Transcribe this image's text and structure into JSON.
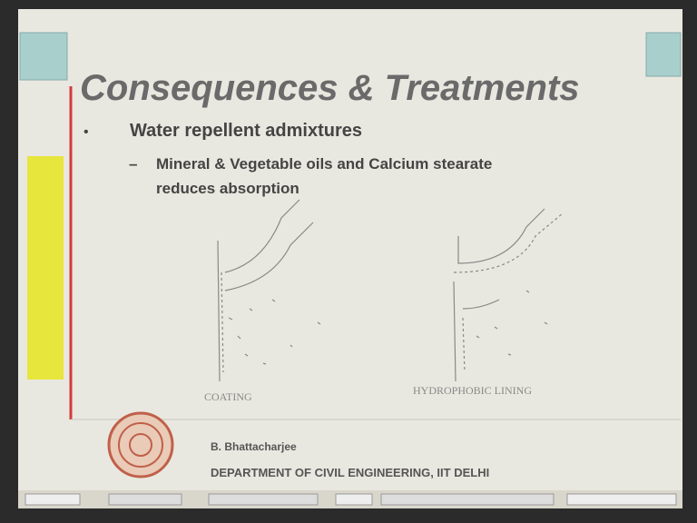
{
  "slide": {
    "title": "Consequences & Treatments",
    "bullets": [
      {
        "text": "Water repellent admixtures",
        "subitems": [
          {
            "lines": [
              "Mineral & Vegetable oils and Calcium stearate",
              "reduces absorption"
            ]
          }
        ]
      }
    ],
    "figures": [
      {
        "label": "COATING"
      },
      {
        "label": "HYDROPHOBIC LINING"
      }
    ],
    "footer": {
      "author": "B. Bhattacharjee",
      "department": "DEPARTMENT OF CIVIL ENGINEERING, IIT DELHI"
    }
  }
}
